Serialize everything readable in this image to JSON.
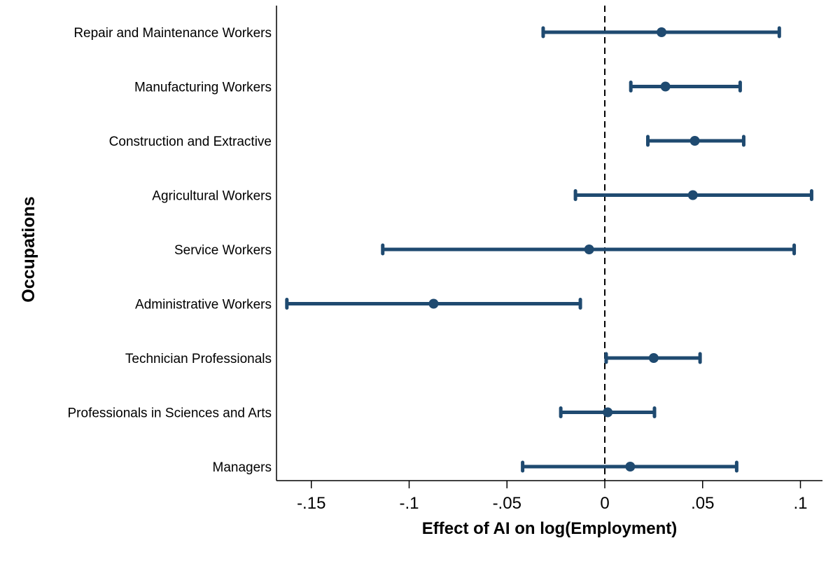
{
  "chart_data": {
    "type": "coefficient-plot",
    "xlabel": "Effect of AI on log(Employment)",
    "ylabel": "Occupations",
    "xlim": [
      -0.165,
      0.112
    ],
    "xticks": [
      -0.15,
      -0.1,
      -0.05,
      0,
      0.05,
      0.1
    ],
    "xtick_labels": [
      "-.15",
      "-.1",
      "-.05",
      "0",
      ".05",
      ".1"
    ],
    "reference_line": 0,
    "grid": false,
    "color": "#1f4a70",
    "categories": [
      "Repair and Maintenance Workers",
      "Manufacturing Workers",
      "Construction and Extractive",
      "Agricultural Workers",
      "Service Workers",
      "Administrative Workers",
      "Technician Professionals",
      "Professionals in Sciences and Arts",
      "Managers"
    ],
    "estimates": [
      0.029,
      0.031,
      0.046,
      0.045,
      -0.008,
      -0.0875,
      0.025,
      0.0015,
      0.013
    ],
    "ci_low": [
      -0.0315,
      0.0133,
      0.022,
      -0.015,
      -0.1135,
      -0.1625,
      0.0007,
      -0.0225,
      -0.042
    ],
    "ci_high": [
      0.0892,
      0.0692,
      0.071,
      0.1057,
      0.0968,
      -0.0125,
      0.0487,
      0.0254,
      0.0674
    ]
  }
}
